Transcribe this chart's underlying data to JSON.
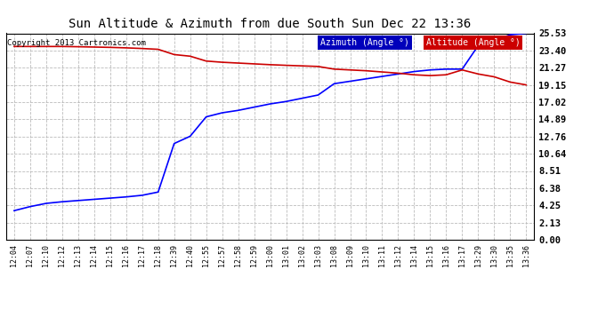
{
  "title": "Sun Altitude & Azimuth from due South Sun Dec 22 13:36",
  "copyright": "Copyright 2013 Cartronics.com",
  "background_color": "#ffffff",
  "plot_bg_color": "#ffffff",
  "grid_color": "#bbbbbb",
  "x_labels": [
    "12:04",
    "12:07",
    "12:10",
    "12:12",
    "12:13",
    "12:14",
    "12:15",
    "12:16",
    "12:17",
    "12:18",
    "12:39",
    "12:40",
    "12:55",
    "12:57",
    "12:58",
    "12:59",
    "13:00",
    "13:01",
    "13:02",
    "13:03",
    "13:08",
    "13:09",
    "13:10",
    "13:11",
    "13:12",
    "13:14",
    "13:15",
    "13:16",
    "13:17",
    "13:29",
    "13:30",
    "13:35",
    "13:36"
  ],
  "y_ticks": [
    0.0,
    2.13,
    4.25,
    6.38,
    8.51,
    10.64,
    12.76,
    14.89,
    17.02,
    19.15,
    21.27,
    23.4,
    25.53
  ],
  "azimuth_values": [
    3.6,
    4.1,
    4.5,
    4.7,
    4.85,
    5.0,
    5.15,
    5.3,
    5.5,
    5.9,
    11.9,
    12.8,
    15.2,
    15.7,
    16.0,
    16.4,
    16.8,
    17.1,
    17.5,
    17.9,
    19.3,
    19.6,
    19.9,
    20.2,
    20.5,
    20.8,
    21.0,
    21.1,
    21.1,
    24.0,
    24.6,
    25.35,
    25.53
  ],
  "altitude_values": [
    23.9,
    23.9,
    23.9,
    23.9,
    23.87,
    23.83,
    23.79,
    23.73,
    23.65,
    23.55,
    22.9,
    22.7,
    22.1,
    21.95,
    21.85,
    21.75,
    21.65,
    21.57,
    21.5,
    21.43,
    21.1,
    21.0,
    20.9,
    20.75,
    20.6,
    20.4,
    20.3,
    20.4,
    21.0,
    20.5,
    20.15,
    19.5,
    19.15
  ],
  "azimuth_color": "#0000ff",
  "altitude_color": "#cc0000",
  "legend_az_bg": "#0000bb",
  "legend_alt_bg": "#cc0000",
  "legend_text_color": "#ffffff",
  "title_color": "#000000",
  "copyright_color": "#000000",
  "ylim": [
    0.0,
    25.53
  ],
  "line_width": 1.2
}
